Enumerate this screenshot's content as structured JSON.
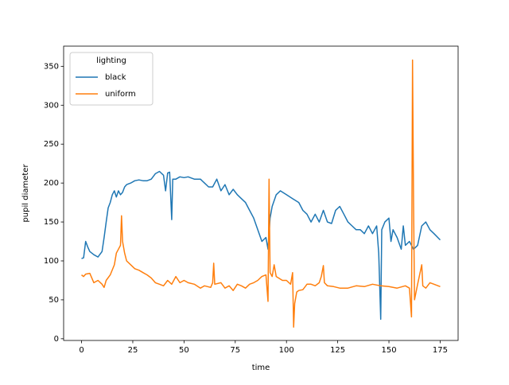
{
  "chart_data": {
    "type": "line",
    "x_label": "time",
    "y_label": "pupil diameter",
    "xlim": [
      -8.75,
      183.75
    ],
    "xticks": [
      0,
      25,
      50,
      75,
      100,
      125,
      150,
      175
    ],
    "ylim": [
      -2.2,
      375.9
    ],
    "yticks": [
      0,
      50,
      100,
      150,
      200,
      250,
      300,
      350
    ],
    "legend_title": "lighting",
    "legend_loc": "upper left",
    "series": [
      {
        "name": "black",
        "color": "#1f77b4",
        "x": [
          0,
          1,
          2,
          3,
          4,
          6,
          8,
          10,
          11,
          12,
          13,
          14,
          15,
          16,
          17,
          18,
          19,
          20,
          21,
          22,
          24,
          26,
          28,
          30,
          32,
          34,
          36,
          38,
          40,
          41,
          42,
          43,
          44,
          44.5,
          46,
          48,
          50,
          52,
          55,
          58,
          60,
          62,
          64,
          66,
          68,
          70,
          72,
          74,
          76,
          78,
          80,
          82,
          84,
          86,
          88,
          90,
          91,
          92,
          93,
          95,
          97,
          100,
          103,
          106,
          108,
          110,
          112,
          114,
          116,
          118,
          120,
          122,
          124,
          126,
          128,
          130,
          132,
          134,
          136,
          138,
          140,
          142,
          144,
          145,
          146,
          146.5,
          148,
          150,
          151,
          152,
          154,
          156,
          157,
          158,
          160,
          162,
          164,
          166,
          168,
          170,
          172,
          175
        ],
        "values": [
          103,
          104,
          125,
          118,
          112,
          108,
          105,
          112,
          130,
          150,
          168,
          175,
          185,
          190,
          182,
          190,
          185,
          188,
          195,
          198,
          200,
          203,
          204,
          203,
          203,
          205,
          212,
          215,
          210,
          190,
          213,
          214,
          153,
          205,
          205,
          208,
          207,
          208,
          205,
          205,
          200,
          195,
          195,
          205,
          190,
          198,
          185,
          192,
          185,
          180,
          175,
          165,
          155,
          140,
          125,
          130,
          115,
          155,
          170,
          185,
          190,
          185,
          180,
          175,
          165,
          160,
          150,
          160,
          150,
          165,
          150,
          148,
          165,
          170,
          160,
          150,
          145,
          140,
          140,
          135,
          145,
          135,
          145,
          110,
          25,
          140,
          150,
          155,
          125,
          140,
          130,
          115,
          145,
          120,
          125,
          115,
          120,
          145,
          150,
          140,
          135,
          127
        ]
      },
      {
        "name": "uniform",
        "color": "#ff7f0e",
        "x": [
          0,
          1,
          2,
          4,
          6,
          8,
          10,
          11,
          12,
          14,
          16,
          17,
          18,
          19,
          19.5,
          20,
          21,
          22,
          24,
          26,
          28,
          30,
          32,
          34,
          36,
          38,
          40,
          42,
          44,
          46,
          48,
          50,
          52,
          55,
          58,
          60,
          63,
          64,
          64.5,
          65,
          68,
          70,
          72,
          74,
          76,
          78,
          80,
          82,
          84,
          86,
          88,
          90,
          91,
          91.5,
          92,
          93,
          94,
          95,
          98,
          100,
          102,
          103,
          103.5,
          104,
          105,
          106,
          108,
          110,
          112,
          114,
          116,
          117,
          118,
          118.5,
          120,
          123,
          126,
          130,
          134,
          138,
          142,
          146,
          150,
          154,
          158,
          160,
          161,
          161.5,
          162,
          162.5,
          164,
          166,
          166.5,
          168,
          170,
          172,
          175
        ],
        "values": [
          82,
          80,
          83,
          84,
          72,
          75,
          70,
          66,
          75,
          82,
          95,
          110,
          115,
          120,
          158,
          125,
          110,
          100,
          95,
          90,
          88,
          85,
          82,
          78,
          72,
          70,
          68,
          75,
          70,
          80,
          72,
          75,
          72,
          70,
          65,
          68,
          66,
          72,
          97,
          70,
          72,
          65,
          68,
          62,
          70,
          68,
          65,
          70,
          72,
          75,
          80,
          82,
          48,
          205,
          85,
          80,
          95,
          80,
          75,
          75,
          70,
          85,
          15,
          45,
          60,
          62,
          63,
          70,
          70,
          68,
          72,
          80,
          94,
          72,
          68,
          67,
          65,
          65,
          68,
          67,
          70,
          68,
          67,
          65,
          68,
          65,
          28,
          358,
          175,
          50,
          70,
          95,
          68,
          65,
          72,
          70,
          67
        ]
      }
    ]
  }
}
